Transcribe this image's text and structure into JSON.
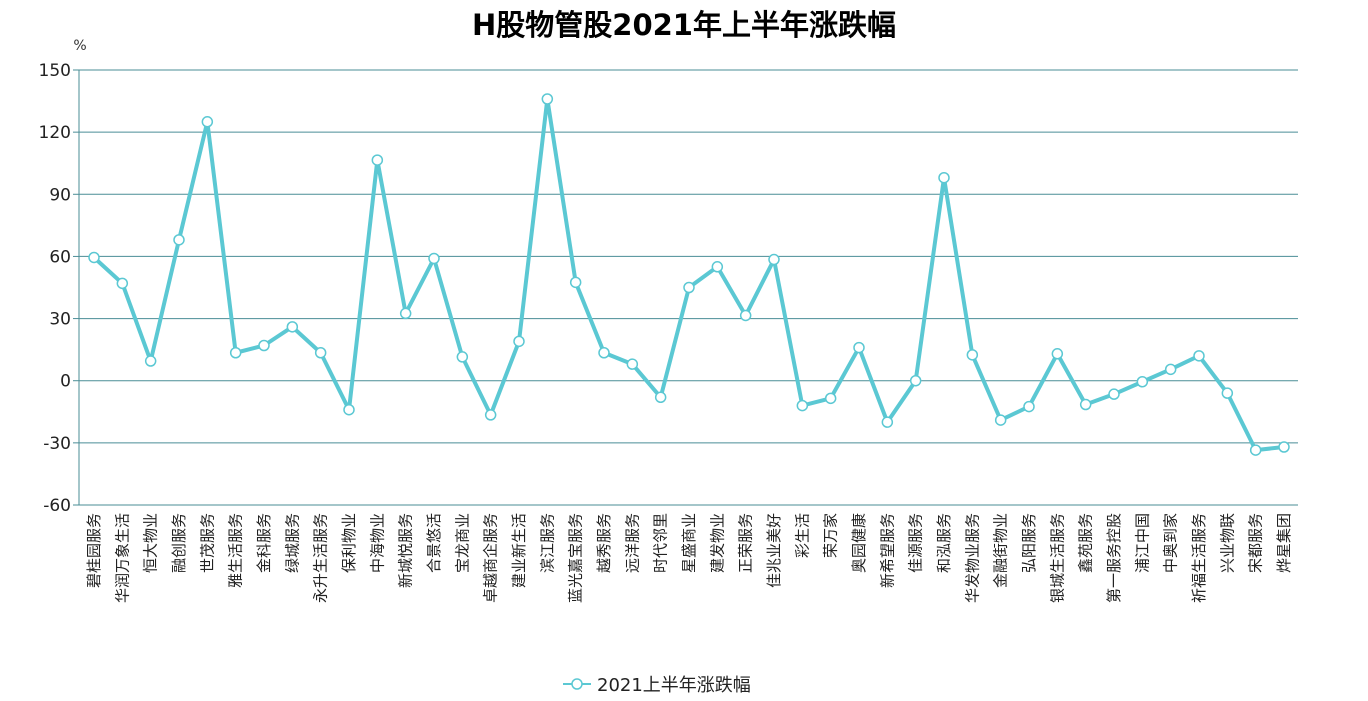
{
  "chart_data": {
    "type": "line",
    "title": "H股物管股2021年上半年涨跌幅",
    "y_unit": "%",
    "ylim": [
      -60,
      150
    ],
    "yticks": [
      150,
      120,
      90,
      60,
      30,
      0,
      -30,
      -60
    ],
    "grid": true,
    "legend_position": "bottom",
    "line_color": "#5bc8d3",
    "grid_color": "#4a8d96",
    "categories": [
      "碧桂园服务",
      "华润万象生活",
      "恒大物业",
      "融创服务",
      "世茂服务",
      "雅生活服务",
      "金科服务",
      "绿城服务",
      "永升生活服务",
      "保利物业",
      "中海物业",
      "新城悦服务",
      "合景悠活",
      "宝龙商业",
      "卓越商企服务",
      "建业新生活",
      "滨江服务",
      "蓝光嘉宝服务",
      "越秀服务",
      "远洋服务",
      "时代邻里",
      "星盛商业",
      "建发物业",
      "正荣服务",
      "佳兆业美好",
      "彩生活",
      "荣万家",
      "奥园健康",
      "新希望服务",
      "佳源服务",
      "和泓服务",
      "华发物业服务",
      "金融街物业",
      "弘阳服务",
      "银城生活服务",
      "鑫苑服务",
      "第一服务控股",
      "浦江中国",
      "中奥到家",
      "祈福生活服务",
      "兴业物联",
      "宋都服务",
      "烨星集团"
    ],
    "series": [
      {
        "name": "2021上半年涨跌幅",
        "values": [
          59.5,
          47,
          9.5,
          68,
          125,
          13.5,
          17,
          26,
          13.5,
          -14,
          106.5,
          32.5,
          59,
          11.5,
          -16.5,
          19,
          136,
          47.5,
          13.5,
          8,
          -8,
          45,
          55,
          31.5,
          58.5,
          -12,
          -8.5,
          16,
          -20,
          0,
          98,
          12.5,
          -19,
          -12.5,
          13,
          -11.5,
          -6.5,
          -0.5,
          5.5,
          12,
          -6,
          -33.5,
          -32
        ]
      }
    ]
  }
}
